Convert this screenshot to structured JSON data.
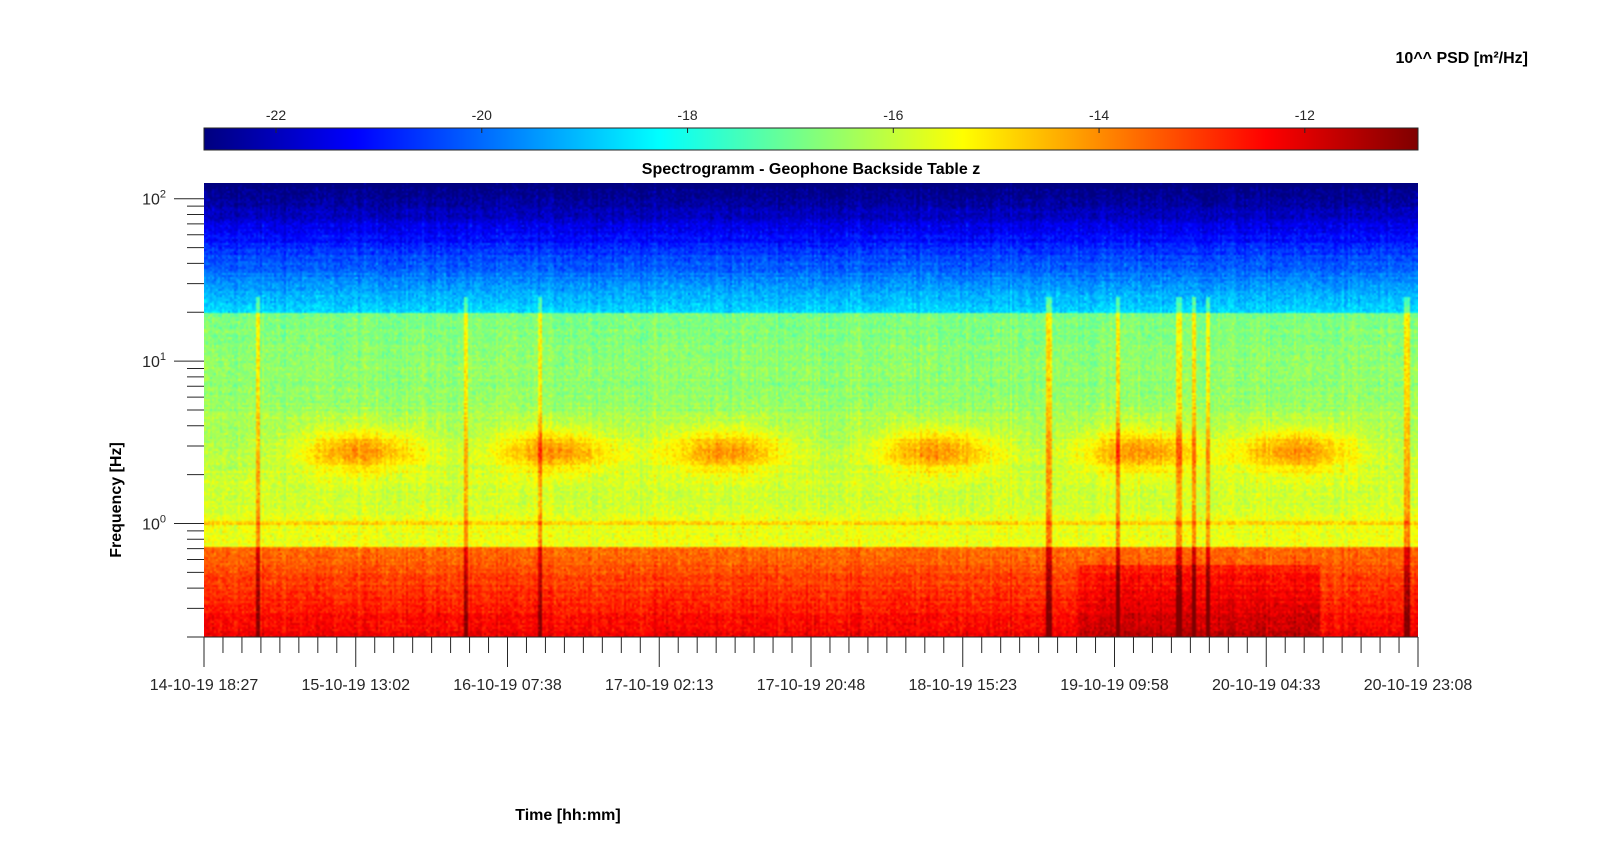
{
  "chart_data": {
    "type": "heatmap",
    "title": "Spectrogramm - Geophone Backside Table z",
    "xlabel": "Time [hh:mm]",
    "ylabel": "Frequency [Hz]",
    "colorbar_label": "10^^ PSD [m²/Hz]",
    "colormap": "jet",
    "colormap_stops": [
      "#00007f",
      "#0000ff",
      "#007fff",
      "#00ffff",
      "#7fff7f",
      "#ffff00",
      "#ff7f00",
      "#ff0000",
      "#7f0000"
    ],
    "colorbar_range": [
      -22.7,
      -10.9
    ],
    "colorbar_ticks": [
      -22,
      -20,
      -18,
      -16,
      -14,
      -12
    ],
    "colorbar_ticks_text": [
      "-22",
      "-20",
      "-18",
      "-16",
      "-14",
      "-12"
    ],
    "y_scale": "log",
    "y_range": [
      0.2,
      125
    ],
    "y_major_ticks": [
      1,
      10,
      100
    ],
    "y_tick_labels": [
      {
        "base": "10",
        "exp": "0"
      },
      {
        "base": "10",
        "exp": "1"
      },
      {
        "base": "10",
        "exp": "2"
      }
    ],
    "x_range": [
      "14-10-19 18:27",
      "20-10-19 23:08"
    ],
    "x_tick_labels": [
      "14-10-19 18:27",
      "15-10-19 13:02",
      "16-10-19 07:38",
      "17-10-19 02:13",
      "17-10-19 20:48",
      "18-10-19 15:23",
      "19-10-19 09:58",
      "20-10-19 04:33",
      "20-10-19 23:08"
    ],
    "x_minor_ticks_per_interval": 8,
    "grid": false,
    "legend": "colorbar-top"
  }
}
